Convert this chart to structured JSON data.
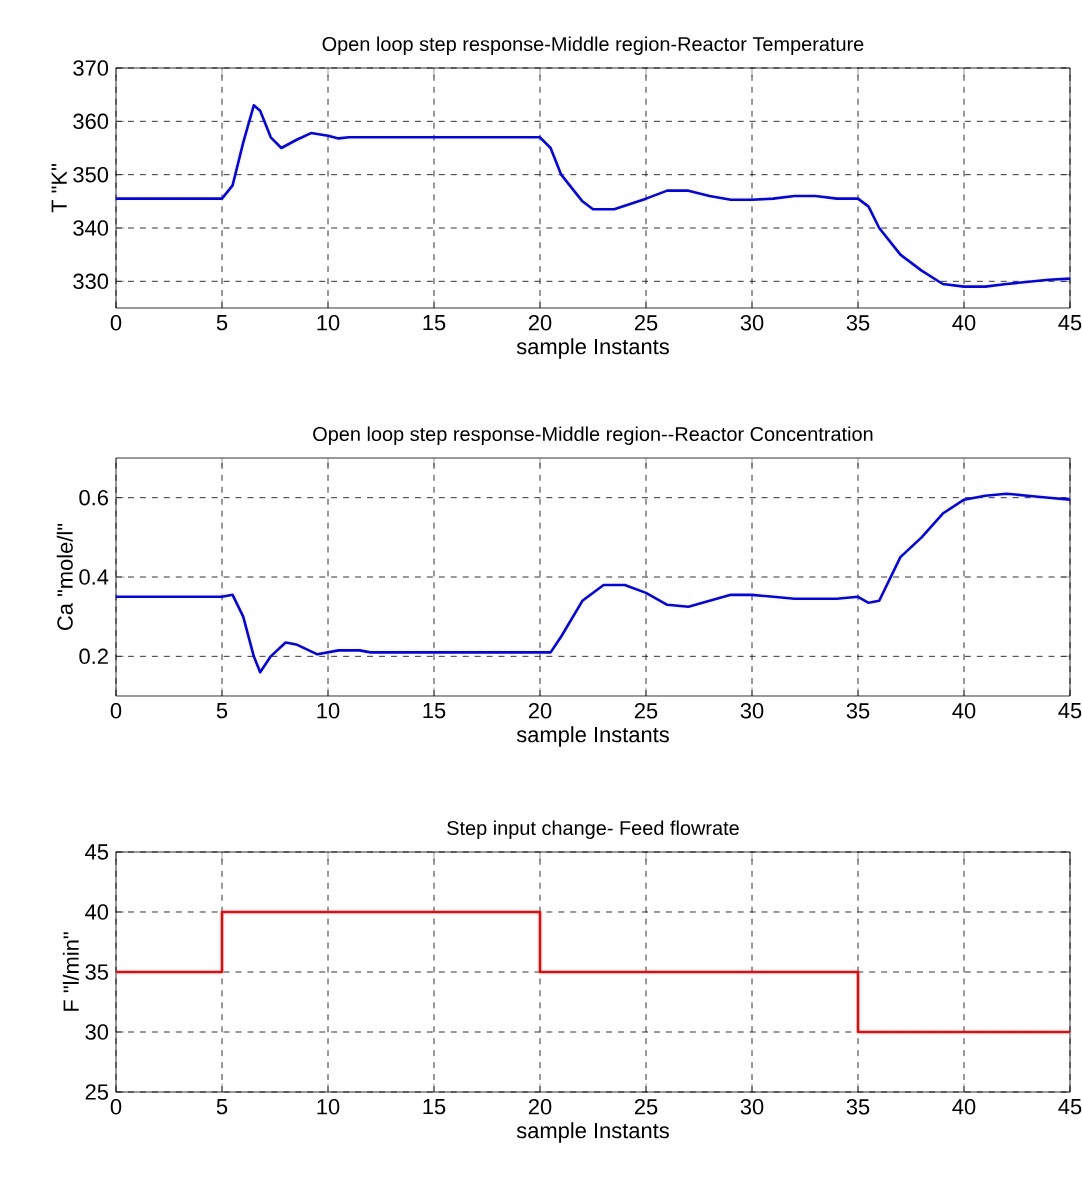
{
  "chart_data": [
    {
      "type": "line",
      "title": "Open loop step response-Middle region-Reactor Temperature",
      "xlabel": "sample Instants",
      "ylabel": "T \"K\"",
      "xlim": [
        0,
        45
      ],
      "ylim": [
        325,
        370
      ],
      "xticks": [
        0,
        5,
        10,
        15,
        20,
        25,
        30,
        35,
        40,
        45
      ],
      "yticks": [
        330,
        340,
        350,
        360,
        370
      ],
      "grid": true,
      "x": [
        0,
        5,
        5.5,
        6,
        6.5,
        6.8,
        7.3,
        7.8,
        8.5,
        9.2,
        10,
        10.5,
        11,
        15,
        20,
        20.5,
        21,
        22,
        22.5,
        23.5,
        25,
        26,
        27,
        28,
        29,
        30,
        31,
        32,
        33,
        34,
        35,
        35.5,
        36,
        37,
        38,
        39,
        40,
        41,
        42,
        44,
        45
      ],
      "series": [
        {
          "color": "#0000ff",
          "values": [
            345.5,
            345.5,
            348,
            356,
            363,
            362,
            357,
            355,
            356.5,
            357.8,
            357.3,
            356.8,
            357,
            357,
            357,
            355,
            350,
            345,
            343.5,
            343.5,
            345.5,
            347,
            347,
            346,
            345.3,
            345.3,
            345.5,
            346,
            346,
            345.5,
            345.5,
            344,
            340,
            335,
            332,
            329.5,
            329,
            329,
            329.5,
            330.3,
            330.5
          ]
        }
      ]
    },
    {
      "type": "line",
      "title": "Open loop step response-Middle region--Reactor Concentration",
      "xlabel": "sample Instants",
      "ylabel": "Ca \"mole/l\"",
      "xlim": [
        0,
        45
      ],
      "ylim": [
        0.1,
        0.7
      ],
      "xticks": [
        0,
        5,
        10,
        15,
        20,
        25,
        30,
        35,
        40,
        45
      ],
      "yticks": [
        0.2,
        0.4,
        0.6
      ],
      "grid": true,
      "x": [
        0,
        5,
        5.5,
        6,
        6.5,
        6.8,
        7.3,
        8,
        8.5,
        9.5,
        10.5,
        11.5,
        12,
        20,
        20.5,
        21,
        22,
        23,
        24,
        25,
        26,
        27,
        28,
        29,
        30,
        31,
        32,
        34,
        35,
        35.5,
        36,
        37,
        38,
        39,
        40,
        41,
        42,
        43,
        44,
        45
      ],
      "series": [
        {
          "color": "#0000ff",
          "values": [
            0.35,
            0.35,
            0.355,
            0.3,
            0.2,
            0.16,
            0.2,
            0.235,
            0.23,
            0.205,
            0.215,
            0.215,
            0.21,
            0.21,
            0.21,
            0.25,
            0.34,
            0.38,
            0.38,
            0.36,
            0.33,
            0.325,
            0.34,
            0.355,
            0.355,
            0.35,
            0.345,
            0.345,
            0.35,
            0.335,
            0.34,
            0.45,
            0.5,
            0.56,
            0.595,
            0.605,
            0.61,
            0.605,
            0.6,
            0.595
          ]
        }
      ]
    },
    {
      "type": "step",
      "title": "Step input change- Feed flowrate",
      "xlabel": "sample Instants",
      "ylabel": "F \"l/min\"",
      "xlim": [
        0,
        45
      ],
      "ylim": [
        25,
        45
      ],
      "xticks": [
        0,
        5,
        10,
        15,
        20,
        25,
        30,
        35,
        40,
        45
      ],
      "yticks": [
        25,
        30,
        35,
        40,
        45
      ],
      "grid": true,
      "x": [
        0,
        5,
        20,
        35,
        45
      ],
      "series": [
        {
          "color": "#ff0000",
          "values": [
            35,
            40,
            35,
            30,
            30
          ]
        }
      ]
    }
  ]
}
